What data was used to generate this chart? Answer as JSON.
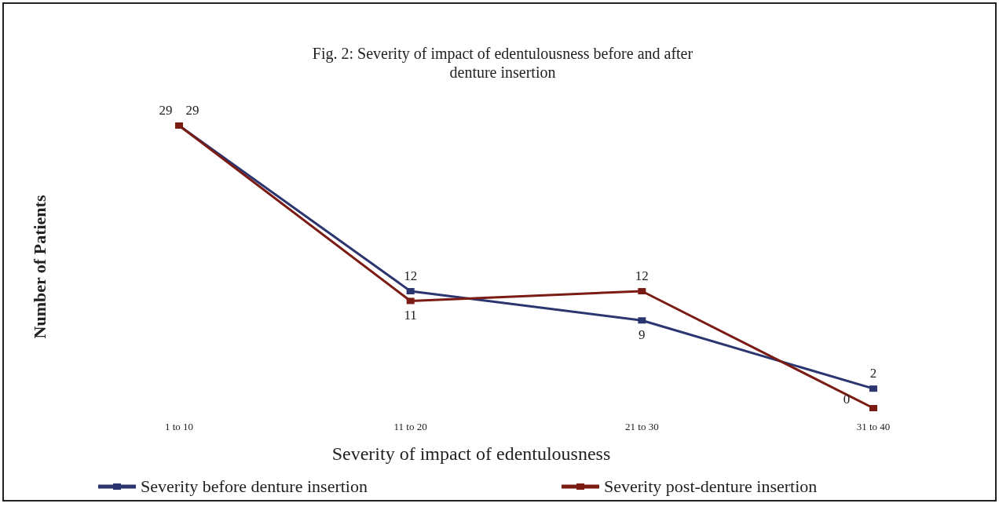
{
  "chart_data": {
    "type": "line",
    "title": "Fig. 2: Severity of impact of edentulousness before and after denture insertion",
    "xlabel": "Severity of impact of edentulousness",
    "ylabel": "Number of Patients",
    "categories": [
      "1 to 10",
      "11 to 20",
      "21 to 30",
      "31 to 40"
    ],
    "series": [
      {
        "name": "Severity before denture insertion",
        "color": "#2b3570",
        "values": [
          29,
          12,
          9,
          2
        ]
      },
      {
        "name": "Severity post-denture insertion",
        "color": "#7a1c14",
        "values": [
          29,
          11,
          12,
          0
        ]
      }
    ],
    "data_labels": true,
    "legend": "bottom",
    "marker": "square"
  }
}
